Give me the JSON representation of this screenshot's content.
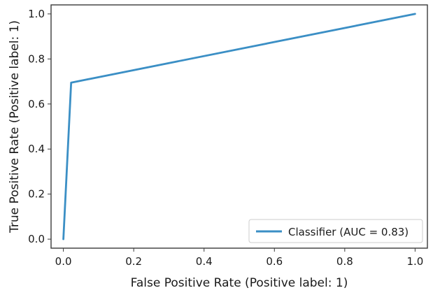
{
  "chart_data": {
    "type": "line",
    "title": "",
    "xlabel": "False Positive Rate (Positive label: 1)",
    "ylabel": "True Positive Rate (Positive label: 1)",
    "xlim": [
      -0.035,
      1.035
    ],
    "ylim": [
      -0.04,
      1.04
    ],
    "x_ticks": [
      0.0,
      0.2,
      0.4,
      0.6,
      0.8,
      1.0
    ],
    "x_tick_labels": [
      "0.0",
      "0.2",
      "0.4",
      "0.6",
      "0.8",
      "1.0"
    ],
    "y_ticks": [
      0.0,
      0.2,
      0.4,
      0.6,
      0.8,
      1.0
    ],
    "y_tick_labels": [
      "0.0",
      "0.2",
      "0.4",
      "0.6",
      "0.8",
      "1.0"
    ],
    "grid": false,
    "legend_position": "lower-right",
    "series": [
      {
        "name": "Classifier (AUC = 0.83)",
        "color": "#3b8fc5",
        "x": [
          0.0,
          0.022,
          1.0
        ],
        "y": [
          0.0,
          0.695,
          1.0
        ]
      }
    ]
  }
}
